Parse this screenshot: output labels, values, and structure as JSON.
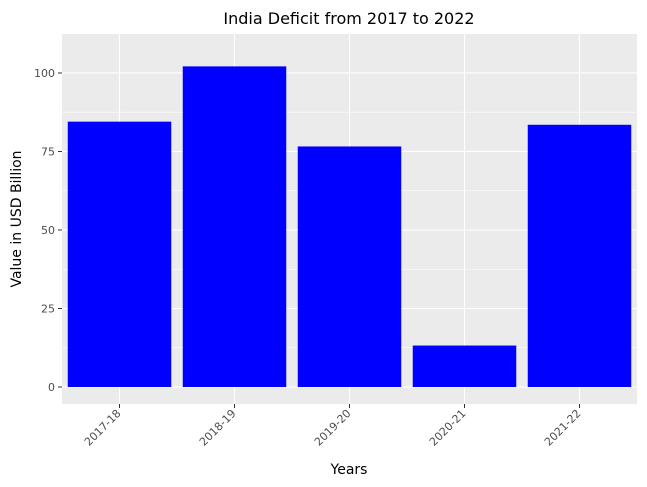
{
  "chart_data": {
    "type": "bar",
    "title": "India Deficit from 2017 to 2022",
    "xlabel": "Years",
    "ylabel": "Value in USD Billion",
    "categories": [
      "2017-18",
      "2018-19",
      "2019-20",
      "2020-21",
      "2021-22"
    ],
    "values": [
      84.5,
      102.1,
      76.6,
      13.2,
      83.5
    ],
    "ylim": [
      0,
      107
    ],
    "yticks": [
      0,
      25,
      50,
      75,
      100
    ],
    "grid": true,
    "legend": "none",
    "colors": {
      "bar": "#0000ff",
      "panel_background": "#ebebeb",
      "gridline": "#ffffff"
    }
  }
}
